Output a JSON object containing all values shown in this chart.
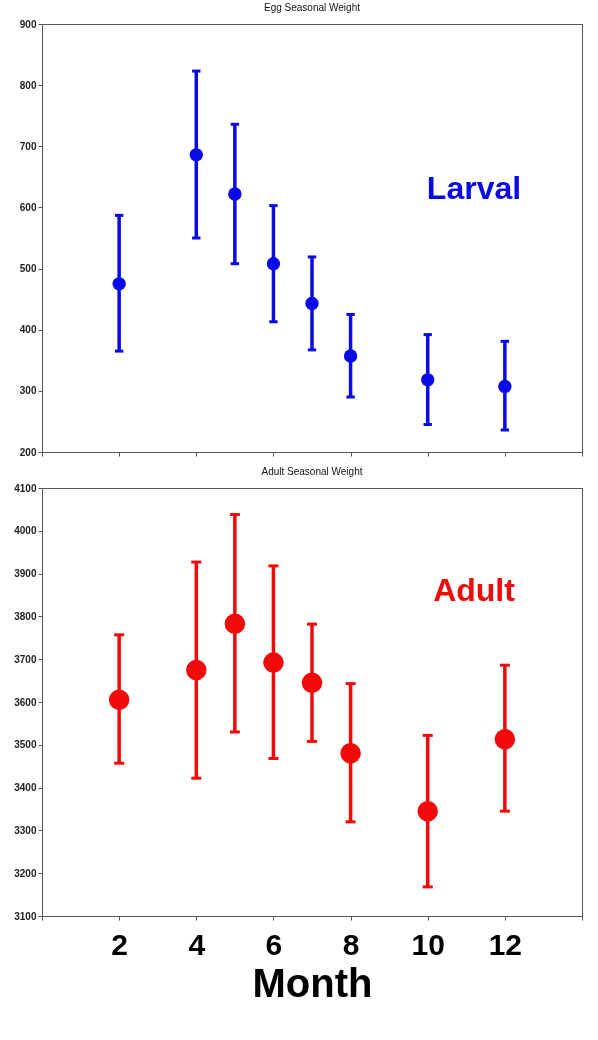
{
  "chart_data": [
    {
      "type": "scatter",
      "title": "Egg Seasonal Weight",
      "x": [
        2,
        4,
        5,
        6,
        7,
        8,
        10,
        12
      ],
      "series": [
        {
          "color": "#0a0ae6",
          "values": [
            475,
            686,
            622,
            508,
            443,
            357,
            318,
            307
          ],
          "errors": [
            [
              365,
              587
            ],
            [
              550,
              823
            ],
            [
              508,
              736
            ],
            [
              413,
              603
            ],
            [
              367,
              519
            ],
            [
              290,
              425
            ],
            [
              245,
              392
            ],
            [
              236,
              381
            ]
          ]
        }
      ],
      "xlim": [
        0,
        14
      ],
      "xticks": [
        {
          "value": 0,
          "label": null
        },
        {
          "value": 2,
          "label": null
        },
        {
          "value": 4,
          "label": null
        },
        {
          "value": 6,
          "label": null
        },
        {
          "value": 8,
          "label": null
        },
        {
          "value": 10,
          "label": null
        },
        {
          "value": 12,
          "label": null
        },
        {
          "value": 14,
          "label": null
        }
      ],
      "ylim": [
        200,
        900
      ],
      "yticks": [
        200,
        300,
        400,
        500,
        600,
        700,
        800,
        900
      ],
      "tick_labels": "y",
      "grid": false,
      "marker": "circle",
      "annotations": [
        "Larval"
      ]
    },
    {
      "type": "scatter",
      "title": "Adult Seasonal Weight",
      "xlabel": "Month",
      "x": [
        2,
        4,
        5,
        6,
        7,
        8,
        10,
        12
      ],
      "series": [
        {
          "color": "#f00a0a",
          "values": [
            3605,
            3675,
            3783,
            3692,
            3645,
            3480,
            3345,
            3513
          ],
          "errors": [
            [
              3457,
              3757
            ],
            [
              3422,
              3927
            ],
            [
              3530,
              4038
            ],
            [
              3468,
              3918
            ],
            [
              3508,
              3782
            ],
            [
              3320,
              3643
            ],
            [
              3168,
              3522
            ],
            [
              3345,
              3686
            ]
          ]
        }
      ],
      "xlim": [
        0,
        14
      ],
      "xticks": [
        {
          "value": 0,
          "label": null
        },
        2,
        4,
        6,
        8,
        10,
        12,
        {
          "value": 14,
          "label": null
        }
      ],
      "ylim": [
        3100,
        4100
      ],
      "yticks": [
        3100,
        3200,
        3300,
        3400,
        3500,
        3600,
        3700,
        3800,
        3900,
        4000,
        4100
      ],
      "grid": false,
      "marker": "circle",
      "annotations": [
        "Adult"
      ]
    }
  ]
}
